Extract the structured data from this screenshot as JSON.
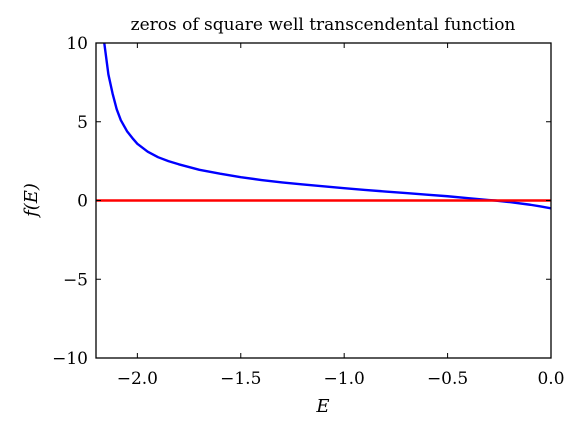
{
  "chart_data": {
    "type": "line",
    "title": "zeros of square well transcendental function",
    "xlabel": "E",
    "ylabel": "f(E)",
    "xlim": [
      -2.2,
      0.0
    ],
    "ylim": [
      -10,
      10
    ],
    "grid": false,
    "legend": "none",
    "x_ticks": [
      -2.0,
      -1.5,
      -1.0,
      -0.5,
      0.0
    ],
    "x_tick_labels": [
      "−2.0",
      "−1.5",
      "−1.0",
      "−0.5",
      "0.0"
    ],
    "y_ticks": [
      -10,
      -5,
      0,
      5,
      10
    ],
    "y_tick_labels": [
      "−10",
      "−5",
      "0",
      "5",
      "10"
    ],
    "series": [
      {
        "color": "#0000ff",
        "x": [
          -2.16,
          -2.14,
          -2.12,
          -2.1,
          -2.08,
          -2.05,
          -2.02,
          -2.0,
          -1.95,
          -1.9,
          -1.85,
          -1.8,
          -1.7,
          -1.6,
          -1.5,
          -1.4,
          -1.3,
          -1.2,
          -1.1,
          -1.0,
          -0.9,
          -0.8,
          -0.7,
          -0.6,
          -0.5,
          -0.4,
          -0.3,
          -0.27,
          -0.2,
          -0.1,
          -0.05,
          0.0
        ],
        "y": [
          10.0,
          8.0,
          6.8,
          5.8,
          5.1,
          4.4,
          3.9,
          3.6,
          3.1,
          2.75,
          2.5,
          2.3,
          1.95,
          1.7,
          1.48,
          1.3,
          1.15,
          1.02,
          0.9,
          0.78,
          0.67,
          0.57,
          0.47,
          0.37,
          0.27,
          0.15,
          0.03,
          0.0,
          -0.1,
          -0.27,
          -0.38,
          -0.5
        ]
      },
      {
        "color": "#ff0000",
        "x": [
          -2.2,
          0.0
        ],
        "y": [
          0,
          0
        ]
      }
    ]
  }
}
